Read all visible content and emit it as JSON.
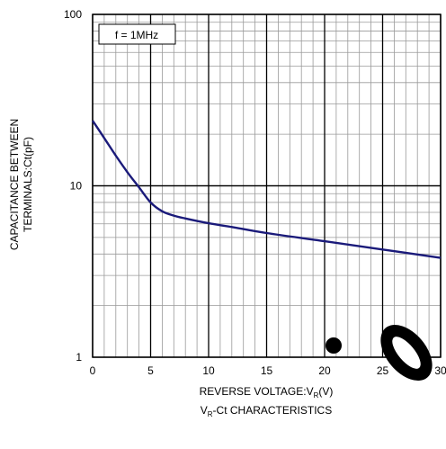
{
  "chart_data": {
    "type": "line",
    "title": "V_R-Ct CHARACTERISTICS",
    "title_main": "V",
    "title_sub": "R",
    "title_rest": "-Ct CHARACTERISTICS",
    "xlabel_main": "REVERSE VOLTAGE:V",
    "xlabel_sub": "R",
    "xlabel_rest": "(V)",
    "ylabel_line1": "CAPACITANCE BETWEEN",
    "ylabel_line2": "TERMINALS:Ct(pF)",
    "annotation": "f = 1MHz",
    "xlim": [
      0,
      30
    ],
    "ylim": [
      1,
      100
    ],
    "yscale": "log",
    "grid": true,
    "x_ticks": [
      "0",
      "5",
      "10",
      "15",
      "20",
      "25",
      "30"
    ],
    "y_ticks": [
      "1",
      "10",
      "100"
    ],
    "series": [
      {
        "color": "#1a1a7a",
        "x": [
          0,
          1,
          2,
          3,
          4,
          5,
          6,
          7,
          8,
          10,
          12,
          15,
          20,
          25,
          30
        ],
        "y": [
          24,
          19,
          15,
          12,
          9.8,
          8.0,
          7.1,
          6.7,
          6.45,
          6.05,
          5.75,
          5.3,
          4.75,
          4.25,
          3.8
        ]
      }
    ]
  }
}
